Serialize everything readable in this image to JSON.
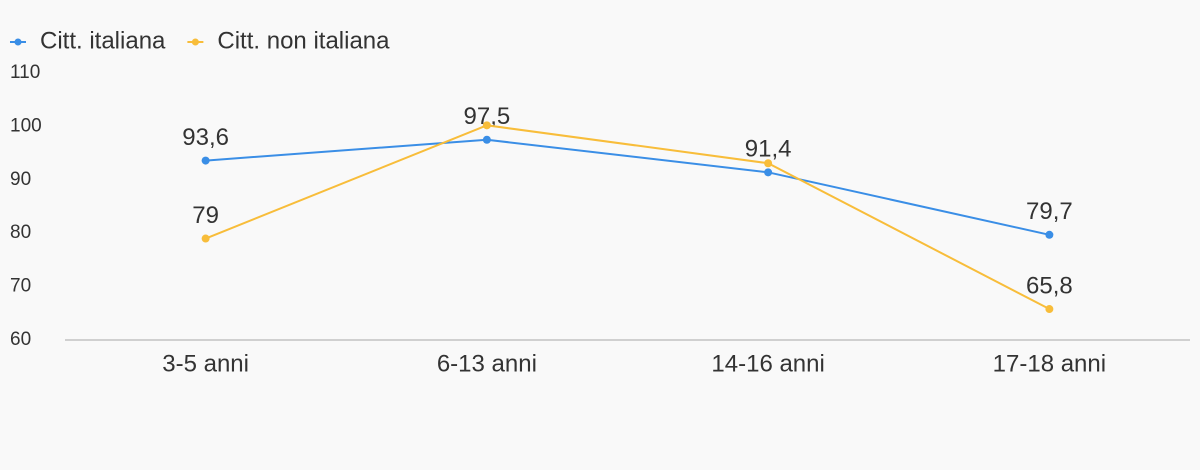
{
  "chart_data": {
    "type": "line",
    "categories": [
      "3-5 anni",
      "6-13 anni",
      "14-16 anni",
      "17-18 anni"
    ],
    "series": [
      {
        "name": "Citt. italiana",
        "color": "#3a8ee6",
        "values": [
          93.6,
          97.5,
          91.4,
          79.7
        ],
        "value_labels": [
          "93,6",
          "97,5",
          "91,4",
          "79,7"
        ]
      },
      {
        "name": "Citt. non italiana",
        "color": "#f8bd3a",
        "values": [
          79,
          100.2,
          93.1,
          65.8
        ],
        "value_labels": [
          "79",
          null,
          null,
          "65,8"
        ]
      }
    ],
    "ylim": [
      60,
      110
    ],
    "yticks": [
      60,
      70,
      80,
      90,
      100,
      110
    ],
    "legend": "top-left"
  }
}
